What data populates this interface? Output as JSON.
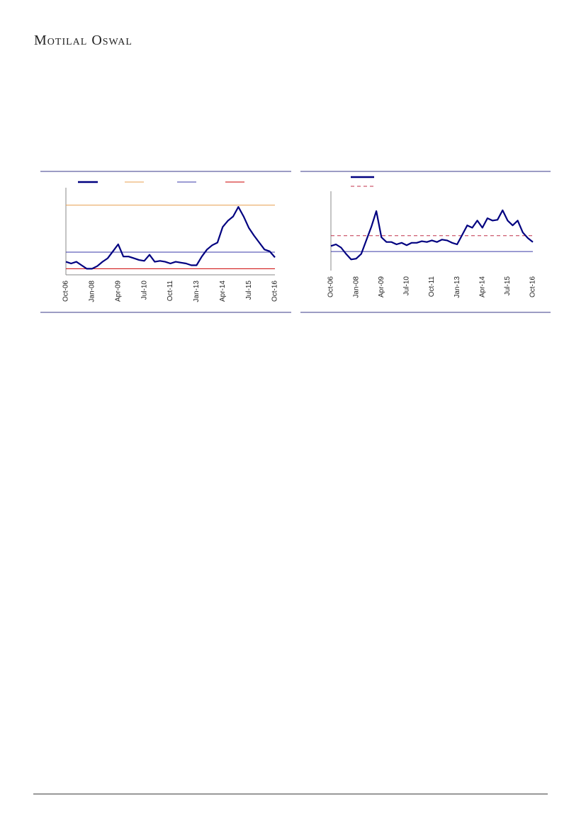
{
  "header": {
    "brand": "Motilal Oswal"
  },
  "chart_data": [
    {
      "type": "line",
      "categories": [
        "Oct-06",
        null,
        null,
        null,
        null,
        "Jan-08",
        null,
        null,
        null,
        null,
        "Apr-09",
        null,
        null,
        null,
        null,
        "Jul-10",
        null,
        null,
        null,
        null,
        "Oct-11",
        null,
        null,
        null,
        null,
        "Jan-13",
        null,
        null,
        null,
        null,
        "Apr-14",
        null,
        null,
        null,
        null,
        "Jul-15",
        null,
        null,
        null,
        null,
        "Oct-16"
      ],
      "series": [
        {
          "color": "#000080",
          "values": [
            15,
            13,
            15,
            11,
            7,
            7,
            10,
            15,
            19,
            27,
            35,
            21,
            21,
            19,
            17,
            16,
            23,
            15,
            16,
            15,
            13,
            15,
            14,
            13,
            11,
            11,
            21,
            29,
            34,
            37,
            55,
            62,
            67,
            78,
            67,
            54,
            45,
            37,
            29,
            27,
            20
          ]
        }
      ],
      "hlines": [
        {
          "value": 80,
          "color": "#e8a050",
          "style": "solid"
        },
        {
          "value": 26,
          "color": "#3a3aa8",
          "style": "solid"
        },
        {
          "value": 7,
          "color": "#cc0000",
          "style": "solid"
        }
      ],
      "ylim": [
        0,
        100
      ]
    },
    {
      "type": "line",
      "categories": [
        "Oct-06",
        null,
        null,
        null,
        null,
        "Jan-08",
        null,
        null,
        null,
        null,
        "Apr-09",
        null,
        null,
        null,
        null,
        "Jul-10",
        null,
        null,
        null,
        null,
        "Oct-11",
        null,
        null,
        null,
        null,
        "Jan-13",
        null,
        null,
        null,
        null,
        "Apr-14",
        null,
        null,
        null,
        null,
        "Jul-15",
        null,
        null,
        null,
        null,
        "Oct-16"
      ],
      "series": [
        {
          "color": "#000080",
          "values": [
            31,
            33,
            29,
            21,
            14,
            15,
            21,
            38,
            55,
            75,
            42,
            36,
            36,
            33,
            35,
            32,
            35,
            35,
            37,
            36,
            38,
            36,
            39,
            38,
            35,
            33,
            45,
            57,
            54,
            63,
            54,
            66,
            63,
            64,
            76,
            63,
            57,
            63,
            48,
            41,
            36
          ]
        }
      ],
      "hlines": [
        {
          "value": 44,
          "color": "#c0304a",
          "style": "dashed"
        },
        {
          "value": 24,
          "color": "#3a3aa8",
          "style": "solid"
        }
      ],
      "ylim": [
        0,
        100
      ]
    }
  ]
}
